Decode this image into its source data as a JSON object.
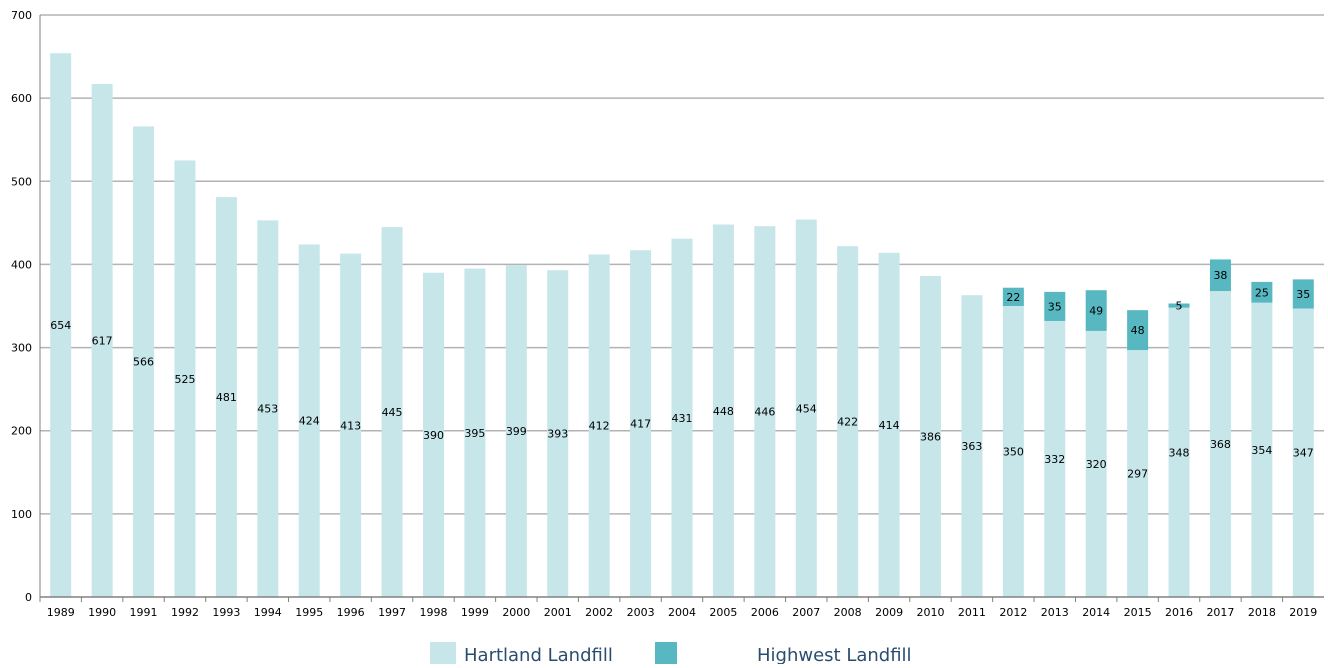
{
  "chart_data": {
    "type": "bar",
    "stacked": true,
    "categories": [
      "1989",
      "1990",
      "1991",
      "1992",
      "1993",
      "1994",
      "1995",
      "1996",
      "1997",
      "1998",
      "1999",
      "2000",
      "2001",
      "2002",
      "2003",
      "2004",
      "2005",
      "2006",
      "2007",
      "2008",
      "2009",
      "2010",
      "2011",
      "2012",
      "2013",
      "2014",
      "2015",
      "2016",
      "2017",
      "2018",
      "2019"
    ],
    "series": [
      {
        "name": "Hartland Landfill",
        "color": "#c6e6ea",
        "values": [
          654,
          617,
          566,
          525,
          481,
          453,
          424,
          413,
          445,
          390,
          395,
          399,
          393,
          412,
          417,
          431,
          448,
          446,
          454,
          422,
          414,
          386,
          363,
          350,
          332,
          320,
          297,
          348,
          368,
          354,
          347
        ]
      },
      {
        "name": "Highwest Landfill",
        "color": "#57b8c2",
        "values": [
          null,
          null,
          null,
          null,
          null,
          null,
          null,
          null,
          null,
          null,
          null,
          null,
          null,
          null,
          null,
          null,
          null,
          null,
          null,
          null,
          null,
          null,
          null,
          22,
          35,
          49,
          48,
          5,
          38,
          25,
          35
        ]
      }
    ],
    "ylim": [
      0,
      700
    ],
    "yticks": [
      0,
      100,
      200,
      300,
      400,
      500,
      600,
      700
    ],
    "grid": true,
    "legend": "bottom",
    "title": "",
    "xlabel": "",
    "ylabel": ""
  }
}
